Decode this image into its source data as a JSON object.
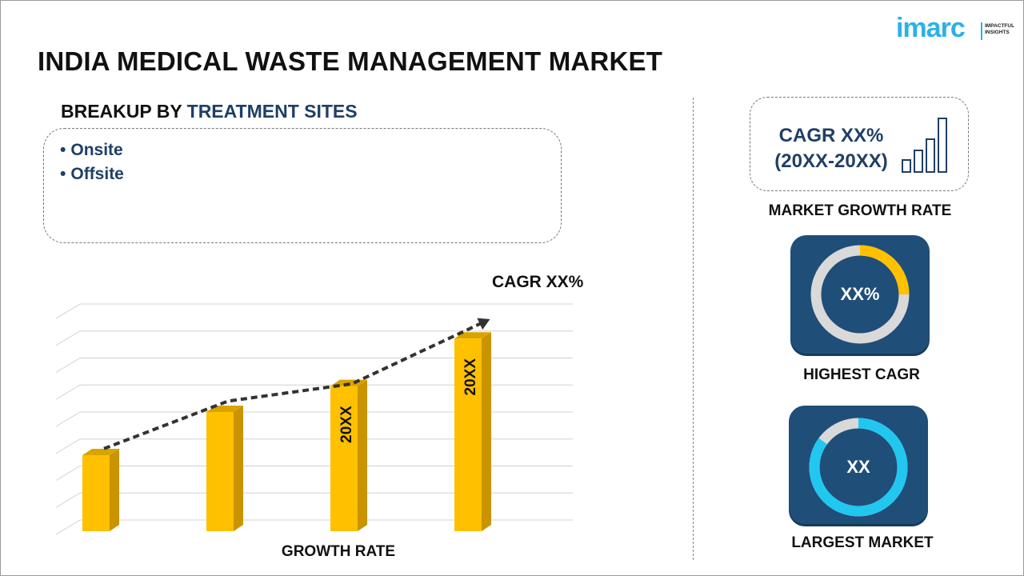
{
  "header": {
    "title": "INDIA MEDICAL WASTE MANAGEMENT MARKET",
    "logo_text": "imarc",
    "logo_tagline_1": "IMPACTFUL",
    "logo_tagline_2": "INSIGHTS"
  },
  "breakup": {
    "label": "BREAKUP BY",
    "segment": "TREATMENT SITES",
    "items": [
      "Onsite",
      "Offsite"
    ]
  },
  "chart_data": {
    "type": "bar",
    "categories": [
      "",
      "",
      "",
      ""
    ],
    "values": [
      30,
      50,
      62,
      84
    ],
    "bar_labels": [
      "",
      "",
      "20XX",
      "20XX"
    ],
    "trend_line": [
      36,
      58,
      66,
      95
    ],
    "trend_label": "CAGR XX%",
    "xlabel": "GROWTH RATE",
    "ylim": [
      0,
      100
    ],
    "grid": true,
    "bar_color": "#ffc000",
    "bar_side_color": "#c99400"
  },
  "cagr_card": {
    "line1": "CAGR XX%",
    "line2": "(20XX-20XX)",
    "caption": "MARKET GROWTH RATE",
    "icon": "bar-growth-icon"
  },
  "highest_cagr": {
    "value": "XX%",
    "caption": "HIGHEST CAGR",
    "ring_fraction": 0.25,
    "ring_color": "#ffc000",
    "track_color": "#d9d9d9",
    "tile_color": "#1f4e79"
  },
  "largest_market": {
    "value": "XX",
    "caption": "LARGEST MARKET",
    "ring_fraction": 0.85,
    "ring_color": "#22c7f0",
    "track_color": "#d9d9d9",
    "tile_color": "#1f4e79"
  }
}
